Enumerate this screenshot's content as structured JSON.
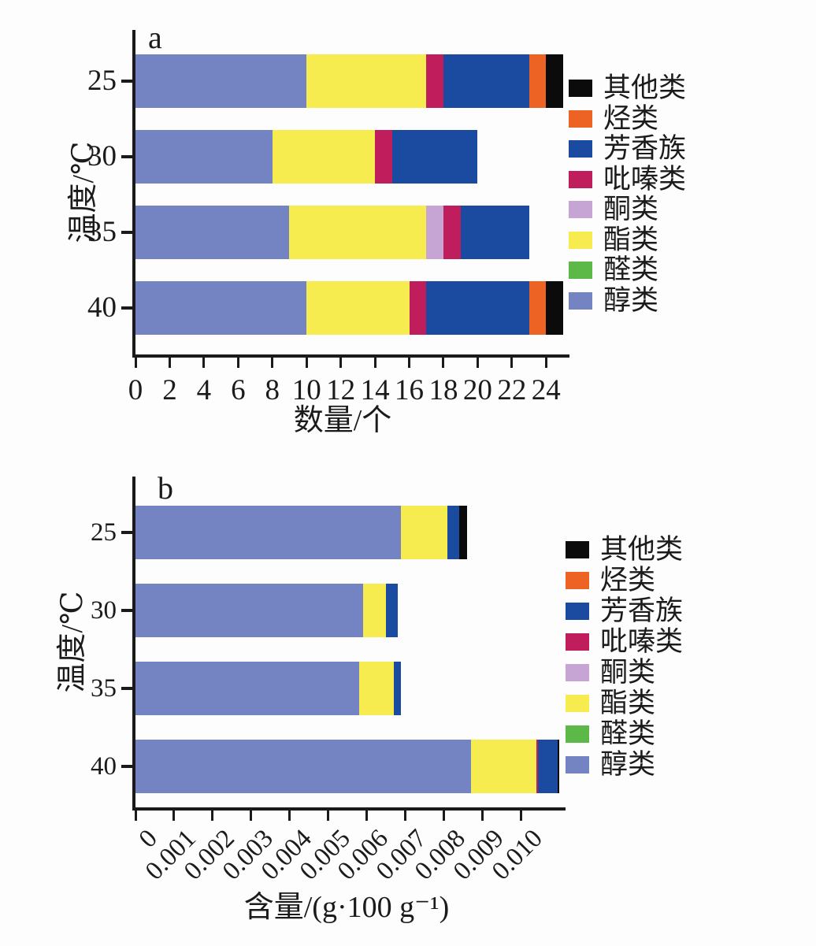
{
  "figure": {
    "background": "#fdfdfd",
    "axis_color": "#1a1a1a"
  },
  "legend": {
    "items": [
      {
        "label": "其他类",
        "color": "#0b0b0b"
      },
      {
        "label": "烃类",
        "color": "#ec6323"
      },
      {
        "label": "芳香族",
        "color": "#1a4ba0"
      },
      {
        "label": "吡嗪类",
        "color": "#c01d5c"
      },
      {
        "label": "酮类",
        "color": "#c6a4d4"
      },
      {
        "label": "酯类",
        "color": "#f6eb4f"
      },
      {
        "label": "醛类",
        "color": "#5cb948"
      },
      {
        "label": "醇类",
        "color": "#7484c3"
      }
    ]
  },
  "chart_data": [
    {
      "type": "bar",
      "orientation": "horizontal",
      "stacked": true,
      "panel_label": "a",
      "xlabel": "数量/个",
      "ylabel": "温度/℃",
      "categories": [
        "25",
        "30",
        "35",
        "40"
      ],
      "series": [
        {
          "name": "醇类",
          "color": "#7484c3",
          "values": [
            10,
            8,
            9,
            10
          ]
        },
        {
          "name": "醛类",
          "color": "#5cb948",
          "values": [
            0,
            0,
            0,
            0
          ]
        },
        {
          "name": "酯类",
          "color": "#f6eb4f",
          "values": [
            7,
            6,
            8,
            6
          ]
        },
        {
          "name": "酮类",
          "color": "#c6a4d4",
          "values": [
            0,
            0,
            1,
            0
          ]
        },
        {
          "name": "吡嗪类",
          "color": "#c01d5c",
          "values": [
            1,
            1,
            1,
            1
          ]
        },
        {
          "name": "芳香族",
          "color": "#1a4ba0",
          "values": [
            5,
            5,
            4,
            6
          ]
        },
        {
          "name": "烃类",
          "color": "#ec6323",
          "values": [
            1,
            0,
            0,
            1
          ]
        },
        {
          "name": "其他类",
          "color": "#0b0b0b",
          "values": [
            1,
            0,
            0,
            1
          ]
        }
      ],
      "xlim": [
        0,
        25
      ],
      "xticks": {
        "values": [
          0,
          2,
          4,
          6,
          8,
          10,
          12,
          14,
          16,
          18,
          20,
          22,
          24
        ],
        "labels": [
          "0",
          "2",
          "4",
          "6",
          "8",
          "10",
          "12",
          "14",
          "16",
          "18",
          "20",
          "22",
          "24"
        ]
      },
      "grid": false,
      "legend_position": "right"
    },
    {
      "type": "bar",
      "orientation": "horizontal",
      "stacked": true,
      "panel_label": "b",
      "xlabel": "含量/(g·100 g⁻¹)",
      "ylabel": "温度/℃",
      "categories": [
        "25",
        "30",
        "35",
        "40"
      ],
      "series": [
        {
          "name": "醇类",
          "color": "#7484c3",
          "values": [
            0.0069,
            0.0059,
            0.0058,
            0.0087
          ]
        },
        {
          "name": "醛类",
          "color": "#5cb948",
          "values": [
            0,
            0,
            0,
            0
          ]
        },
        {
          "name": "酯类",
          "color": "#f6eb4f",
          "values": [
            0.0012,
            0.0006,
            0.0009,
            0.0017
          ]
        },
        {
          "name": "酮类",
          "color": "#c6a4d4",
          "values": [
            0,
            0,
            0,
            0
          ]
        },
        {
          "name": "吡嗪类",
          "color": "#c01d5c",
          "values": [
            0,
            0,
            0,
            5e-05
          ]
        },
        {
          "name": "芳香族",
          "color": "#1a4ba0",
          "values": [
            0.0003,
            0.0003,
            0.0002,
            0.0005
          ]
        },
        {
          "name": "烃类",
          "color": "#ec6323",
          "values": [
            0,
            0,
            0,
            0
          ]
        },
        {
          "name": "其他类",
          "color": "#0b0b0b",
          "values": [
            0.0002,
            0,
            0,
            5e-05
          ]
        }
      ],
      "xlim": [
        0,
        0.011
      ],
      "xticks": {
        "values": [
          0,
          0.001,
          0.002,
          0.003,
          0.004,
          0.005,
          0.006,
          0.007,
          0.008,
          0.009,
          0.01
        ],
        "labels": [
          "0",
          "0.001",
          "0.002",
          "0.003",
          "0.004",
          "0.005",
          "0.006",
          "0.007",
          "0.008",
          "0.009",
          "0.010"
        ]
      },
      "grid": false,
      "legend_position": "right"
    }
  ]
}
